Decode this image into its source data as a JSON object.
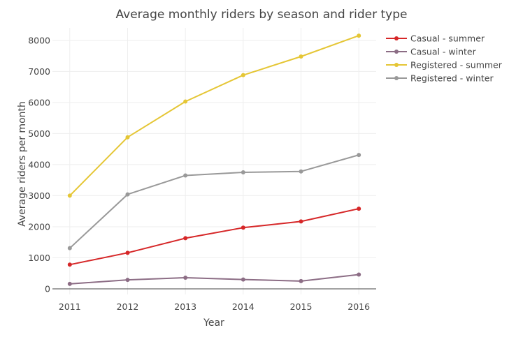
{
  "chart_data": {
    "type": "line",
    "title": "Average monthly riders by season and rider type",
    "xlabel": "Year",
    "ylabel": "Average riders per month",
    "x": [
      2011,
      2012,
      2013,
      2014,
      2015,
      2016
    ],
    "xlim": [
      2010.7,
      2016.3
    ],
    "ylim": [
      -180,
      8400
    ],
    "yticks": [
      0,
      1000,
      2000,
      3000,
      4000,
      5000,
      6000,
      7000,
      8000
    ],
    "grid": true,
    "legend_position": "top-right",
    "series": [
      {
        "name": "Casual - summer",
        "color": "#d62728",
        "values": [
          780,
          1160,
          1630,
          1970,
          2170,
          2580
        ]
      },
      {
        "name": "Casual - winter",
        "color": "#8c6d85",
        "values": [
          160,
          290,
          360,
          300,
          250,
          460
        ]
      },
      {
        "name": "Registered - summer",
        "color": "#e5c635",
        "values": [
          3000,
          4880,
          6030,
          6880,
          7480,
          8150
        ]
      },
      {
        "name": "Registered - winter",
        "color": "#999999",
        "values": [
          1310,
          3040,
          3650,
          3750,
          3780,
          4310
        ]
      }
    ]
  }
}
